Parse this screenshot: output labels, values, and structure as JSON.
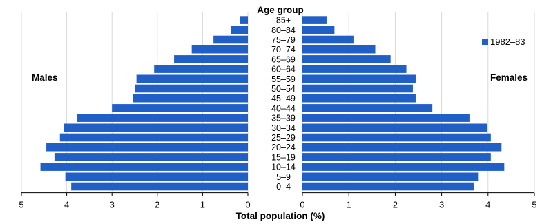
{
  "chart_data": {
    "type": "bar",
    "orientation": "horizontal",
    "layout": "population-pyramid",
    "title": "Age group",
    "xlabel": "Total population (%)",
    "left_label": "Males",
    "right_label": "Females",
    "legend": {
      "entries": [
        "1982–83"
      ],
      "position": "top-right"
    },
    "xlim": [
      0,
      5
    ],
    "x_ticks_left": [
      "5",
      "4",
      "3",
      "2",
      "1",
      "0"
    ],
    "x_ticks_right": [
      "0",
      "1",
      "2",
      "3",
      "4",
      "5"
    ],
    "grid": true,
    "color": "#1f5fc6",
    "categories": [
      "85+",
      "80–84",
      "75–79",
      "70–74",
      "65–69",
      "60–64",
      "55–59",
      "50–54",
      "45–49",
      "40–44",
      "35–39",
      "30–34",
      "25–29",
      "20–24",
      "15–19",
      "10–14",
      "5–9",
      "0–4"
    ],
    "series": [
      {
        "side": "left",
        "values": [
          0.18,
          0.37,
          0.76,
          1.24,
          1.63,
          2.07,
          2.46,
          2.49,
          2.54,
          3.0,
          3.78,
          4.06,
          4.15,
          4.45,
          4.27,
          4.58,
          4.03,
          3.9
        ]
      },
      {
        "side": "right",
        "values": [
          0.52,
          0.69,
          1.1,
          1.57,
          1.9,
          2.24,
          2.44,
          2.38,
          2.44,
          2.8,
          3.6,
          3.98,
          4.06,
          4.29,
          4.06,
          4.35,
          3.8,
          3.69
        ]
      }
    ]
  }
}
